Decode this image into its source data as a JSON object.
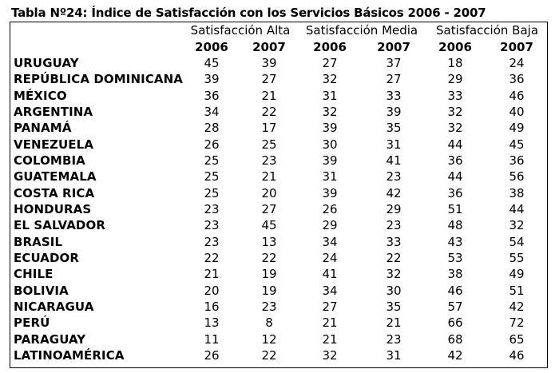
{
  "title": "Tabla Nº24:  Índice de Satisfacción con los Servicios Básicos 2006 - 2007",
  "groups": [
    "Satisfacción Alta",
    "Satisfacción Media",
    "Satisfacción Baja"
  ],
  "years": [
    "2006",
    "2007",
    "2006",
    "2007",
    "2006",
    "2007"
  ],
  "rows": [
    {
      "country": "URUGUAY",
      "values": [
        "45",
        "39",
        "27",
        "37",
        "18",
        "24"
      ]
    },
    {
      "country": "REPÚBLICA DOMINICANA",
      "values": [
        "39",
        "27",
        "32",
        "27",
        "29",
        "36"
      ]
    },
    {
      "country": "MÉXICO",
      "values": [
        "36",
        "21",
        "31",
        "33",
        "33",
        "46"
      ]
    },
    {
      "country": "ARGENTINA",
      "values": [
        "34",
        "22",
        "32",
        "39",
        "32",
        "40"
      ]
    },
    {
      "country": "PANAMÁ",
      "values": [
        "28",
        "17",
        "39",
        "35",
        "32",
        "49"
      ]
    },
    {
      "country": "VENEZUELA",
      "values": [
        "26",
        "25",
        "30",
        "31",
        "44",
        "45"
      ]
    },
    {
      "country": "COLOMBIA",
      "values": [
        "25",
        "23",
        "39",
        "41",
        "36",
        "36"
      ]
    },
    {
      "country": "GUATEMALA",
      "values": [
        "25",
        "21",
        "31",
        "23",
        "44",
        "56"
      ]
    },
    {
      "country": "COSTA RICA",
      "values": [
        "25",
        "20",
        "39",
        "42",
        "36",
        "38"
      ]
    },
    {
      "country": "HONDURAS",
      "values": [
        "23",
        "27",
        "26",
        "29",
        "51",
        "44"
      ]
    },
    {
      "country": "EL SALVADOR",
      "values": [
        "23",
        "45",
        "29",
        "23",
        "48",
        "32"
      ]
    },
    {
      "country": "BRASIL",
      "values": [
        "23",
        "13",
        "34",
        "33",
        "43",
        "54"
      ]
    },
    {
      "country": "ECUADOR",
      "values": [
        "22",
        "22",
        "24",
        "22",
        "53",
        "55"
      ]
    },
    {
      "country": "CHILE",
      "values": [
        "21",
        "19",
        "41",
        "32",
        "38",
        "49"
      ]
    },
    {
      "country": "BOLIVIA",
      "values": [
        "20",
        "19",
        "34",
        "30",
        "46",
        "51"
      ]
    },
    {
      "country": "NICARAGUA",
      "values": [
        "16",
        "23",
        "27",
        "35",
        "57",
        "42"
      ]
    },
    {
      "country": "PERÚ",
      "values": [
        "13",
        "8",
        "21",
        "21",
        "66",
        "72"
      ]
    },
    {
      "country": "PARAGUAY",
      "values": [
        "11",
        "12",
        "21",
        "23",
        "68",
        "65"
      ]
    },
    {
      "country": "LATINOAMÉRICA",
      "values": [
        "26",
        "22",
        "32",
        "31",
        "42",
        "46"
      ]
    }
  ]
}
